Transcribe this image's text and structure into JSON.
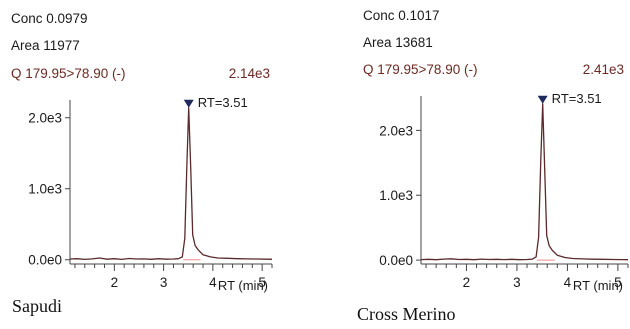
{
  "chart_data": [
    {
      "type": "line",
      "conc_label": "Conc 0.0979",
      "area_label": "Area 11977",
      "transition": "Q 179.95>78.90 (-)",
      "max_intensity": "2.14e3",
      "peak_label": "RT=3.51",
      "sample_label": "Sapudi",
      "xlabel": "RT (min)",
      "ylabel": "",
      "x_ticks": [
        2,
        3,
        4,
        5
      ],
      "y_ticks": [
        {
          "value": 0,
          "label": "0.0e0"
        },
        {
          "value": 1000,
          "label": "1.0e3"
        },
        {
          "value": 2000,
          "label": "2.0e3"
        }
      ],
      "xlim": [
        1.1,
        5.2
      ],
      "ylim": [
        -60,
        2250
      ],
      "series": [
        {
          "line_color": "#5a2a2a",
          "baseline_color": "#f0a0a0",
          "x": [
            1.1,
            1.25,
            1.4,
            1.55,
            1.7,
            1.85,
            2.0,
            2.15,
            2.3,
            2.45,
            2.6,
            2.75,
            2.9,
            3.05,
            3.2,
            3.3,
            3.38,
            3.43,
            3.47,
            3.51,
            3.55,
            3.59,
            3.64,
            3.7,
            3.8,
            3.95,
            4.1,
            4.3,
            4.5,
            4.7,
            4.9,
            5.1,
            5.2
          ],
          "y": [
            10,
            15,
            5,
            12,
            25,
            8,
            15,
            5,
            18,
            10,
            12,
            6,
            14,
            8,
            10,
            15,
            40,
            300,
            1300,
            2140,
            1300,
            350,
            200,
            140,
            70,
            40,
            25,
            20,
            15,
            12,
            10,
            8,
            6
          ]
        }
      ],
      "baseline": {
        "x": [
          3.4,
          3.75
        ],
        "y": [
          0,
          0
        ]
      }
    },
    {
      "type": "line",
      "conc_label": "Conc 0.1017",
      "area_label": "Area 13681",
      "transition": "Q 179.95>78.90 (-)",
      "max_intensity": "2.41e3",
      "peak_label": "RT=3.51",
      "sample_label": "Cross Merino",
      "xlabel": "RT (min)",
      "ylabel": "",
      "x_ticks": [
        2,
        3,
        4,
        5
      ],
      "y_ticks": [
        {
          "value": 0,
          "label": "0.0e0"
        },
        {
          "value": 1000,
          "label": "1.0e3"
        },
        {
          "value": 2000,
          "label": "2.0e3"
        }
      ],
      "xlim": [
        1.1,
        5.2
      ],
      "ylim": [
        -60,
        2530
      ],
      "series": [
        {
          "line_color": "#5a2a2a",
          "baseline_color": "#f0a0a0",
          "x": [
            1.1,
            1.25,
            1.4,
            1.55,
            1.7,
            1.85,
            2.0,
            2.15,
            2.3,
            2.45,
            2.6,
            2.75,
            2.9,
            3.05,
            3.2,
            3.3,
            3.38,
            3.43,
            3.47,
            3.51,
            3.55,
            3.59,
            3.64,
            3.7,
            3.8,
            3.95,
            4.1,
            4.3,
            4.5,
            4.7,
            4.9,
            5.1,
            5.2
          ],
          "y": [
            8,
            12,
            6,
            15,
            20,
            10,
            12,
            6,
            16,
            9,
            12,
            8,
            12,
            7,
            10,
            14,
            50,
            350,
            1500,
            2410,
            1400,
            380,
            220,
            150,
            75,
            40,
            25,
            18,
            14,
            12,
            10,
            8,
            6
          ]
        }
      ],
      "baseline": {
        "x": [
          3.4,
          3.75
        ],
        "y": [
          0,
          0
        ]
      }
    }
  ]
}
